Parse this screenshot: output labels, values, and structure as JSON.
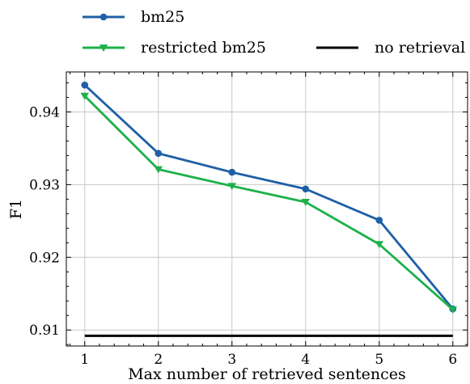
{
  "chart_data": {
    "type": "line",
    "title": "",
    "xlabel": "Max number of retrieved sentences",
    "ylabel": "F1",
    "x": [
      1,
      2,
      3,
      4,
      5,
      6
    ],
    "xlim": [
      0.75,
      6.2
    ],
    "ylim": [
      0.9078,
      0.9455
    ],
    "xticks": [
      "1",
      "2",
      "3",
      "4",
      "5",
      "6"
    ],
    "yticks": [
      "0.91",
      "0.92",
      "0.93",
      "0.94"
    ],
    "ytick_values": [
      0.91,
      0.92,
      0.93,
      0.94
    ],
    "grid": true,
    "legend_position": "top, outside plot area",
    "series": [
      {
        "name": "bm25",
        "color": "#1f5fa6",
        "marker": "circle",
        "values": [
          0.9437,
          0.9343,
          0.9317,
          0.9294,
          0.9251,
          0.9129
        ]
      },
      {
        "name": "restricted bm25",
        "color": "#1cb14a",
        "marker": "triangle-down",
        "values": [
          0.9422,
          0.9321,
          0.9298,
          0.9276,
          0.9218,
          0.9128
        ]
      },
      {
        "name": "no retrieval",
        "color": "#000000",
        "marker": "none",
        "values": [
          0.9092,
          0.9092,
          0.9092,
          0.9092,
          0.9092,
          0.9092
        ]
      }
    ]
  }
}
